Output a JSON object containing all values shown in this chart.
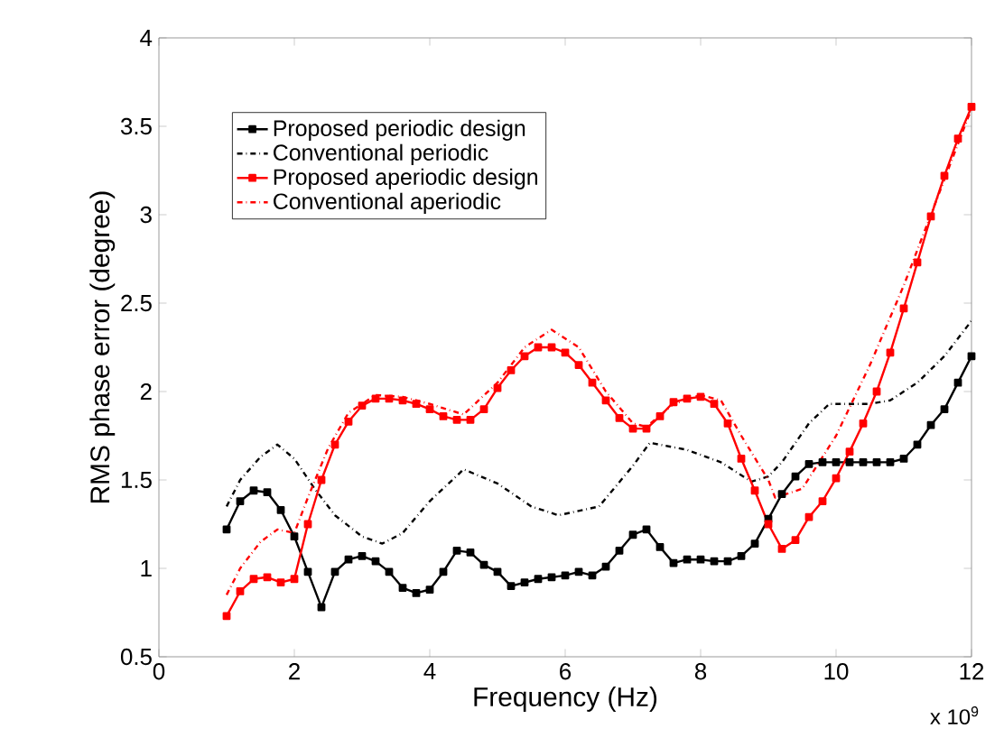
{
  "chart_data": {
    "type": "line",
    "xlabel": "Frequency (Hz)",
    "ylabel": "RMS phase error (degree)",
    "annotations": [
      "x 10$^{9}$"
    ],
    "xlim": [
      0,
      12
    ],
    "xticks": [
      0,
      2,
      4,
      6,
      8,
      10,
      12
    ],
    "ylim": [
      0.5,
      4
    ],
    "yticks": [
      0.5,
      1,
      1.5,
      2,
      2.5,
      3,
      3.5,
      4
    ],
    "grid": false,
    "legend": "top left",
    "series": [
      {
        "name": "Proposed periodic design",
        "color": "#000000",
        "marker": "square",
        "line_style": "solid",
        "x": [
          1.0,
          1.2,
          1.4,
          1.6,
          1.8,
          2.0,
          2.2,
          2.4,
          2.6,
          2.8,
          3.0,
          3.2,
          3.4,
          3.6,
          3.8,
          4.0,
          4.2,
          4.4,
          4.6,
          4.8,
          5.0,
          5.2,
          5.4,
          5.6,
          5.8,
          6.0,
          6.2,
          6.4,
          6.6,
          6.8,
          7.0,
          7.2,
          7.4,
          7.6,
          7.8,
          8.0,
          8.2,
          8.4,
          8.6,
          8.8,
          9.0,
          9.2,
          9.4,
          9.6,
          9.8,
          10.0,
          10.2,
          10.4,
          10.6,
          10.8,
          11.0,
          11.2,
          11.4,
          11.6,
          11.8,
          12.0
        ],
        "values": [
          1.22,
          1.38,
          1.44,
          1.43,
          1.33,
          1.18,
          0.98,
          0.78,
          0.98,
          1.05,
          1.07,
          1.04,
          0.98,
          0.89,
          0.86,
          0.88,
          0.98,
          1.1,
          1.09,
          1.02,
          0.98,
          0.9,
          0.92,
          0.94,
          0.95,
          0.96,
          0.98,
          0.96,
          1.01,
          1.1,
          1.19,
          1.22,
          1.12,
          1.03,
          1.05,
          1.05,
          1.04,
          1.04,
          1.07,
          1.14,
          1.28,
          1.42,
          1.52,
          1.59,
          1.6,
          1.6,
          1.6,
          1.6,
          1.6,
          1.6,
          1.62,
          1.7,
          1.81,
          1.9,
          2.05,
          2.2
        ]
      },
      {
        "name": "Conventional periodic",
        "color": "#000000",
        "marker": "none",
        "line_style": "dashdotted",
        "x": [
          1.0,
          1.2,
          1.5,
          1.75,
          2.0,
          2.3,
          2.6,
          3.0,
          3.3,
          3.6,
          4.0,
          4.5,
          5.0,
          5.5,
          5.9,
          6.5,
          7.0,
          7.25,
          7.8,
          8.3,
          8.75,
          9.0,
          9.2,
          9.6,
          9.9,
          10.5,
          10.8,
          11.2,
          11.6,
          12.0
        ],
        "values": [
          1.35,
          1.5,
          1.63,
          1.7,
          1.62,
          1.45,
          1.3,
          1.18,
          1.14,
          1.2,
          1.38,
          1.56,
          1.48,
          1.35,
          1.3,
          1.35,
          1.58,
          1.71,
          1.67,
          1.6,
          1.49,
          1.52,
          1.6,
          1.82,
          1.93,
          1.93,
          1.95,
          2.05,
          2.2,
          2.4
        ]
      },
      {
        "name": "Proposed aperiodic design",
        "color": "#ff0000",
        "marker": "square",
        "line_style": "solid",
        "x": [
          1.0,
          1.2,
          1.4,
          1.6,
          1.8,
          2.0,
          2.2,
          2.4,
          2.6,
          2.8,
          3.0,
          3.2,
          3.4,
          3.6,
          3.8,
          4.0,
          4.2,
          4.4,
          4.6,
          4.8,
          5.0,
          5.2,
          5.4,
          5.6,
          5.8,
          6.0,
          6.2,
          6.4,
          6.6,
          6.8,
          7.0,
          7.2,
          7.4,
          7.6,
          7.8,
          8.0,
          8.2,
          8.4,
          8.6,
          8.8,
          9.0,
          9.2,
          9.4,
          9.6,
          9.8,
          10.0,
          10.2,
          10.4,
          10.6,
          10.8,
          11.0,
          11.2,
          11.4,
          11.6,
          11.8,
          12.0
        ],
        "values": [
          0.73,
          0.87,
          0.94,
          0.95,
          0.92,
          0.94,
          1.25,
          1.5,
          1.7,
          1.83,
          1.92,
          1.96,
          1.96,
          1.95,
          1.93,
          1.9,
          1.86,
          1.84,
          1.84,
          1.9,
          2.02,
          2.12,
          2.2,
          2.25,
          2.25,
          2.22,
          2.15,
          2.05,
          1.95,
          1.85,
          1.79,
          1.79,
          1.86,
          1.94,
          1.96,
          1.97,
          1.93,
          1.82,
          1.62,
          1.44,
          1.25,
          1.11,
          1.16,
          1.29,
          1.38,
          1.51,
          1.66,
          1.82,
          2.0,
          2.22,
          2.47,
          2.73,
          2.99,
          3.22,
          3.43,
          3.61
        ]
      },
      {
        "name": "Conventional aperiodic",
        "color": "#ff0000",
        "marker": "none",
        "line_style": "dashdotted",
        "x": [
          1.0,
          1.2,
          1.5,
          1.75,
          2.0,
          2.2,
          2.5,
          2.8,
          3.2,
          3.6,
          4.0,
          4.5,
          5.0,
          5.4,
          5.8,
          6.2,
          6.6,
          7.0,
          7.2,
          7.6,
          8.0,
          8.3,
          8.6,
          9.0,
          9.1,
          9.5,
          10.0,
          10.5,
          11.0,
          11.5,
          12.0
        ],
        "values": [
          0.85,
          1.0,
          1.15,
          1.22,
          1.2,
          1.4,
          1.68,
          1.88,
          1.98,
          1.97,
          1.93,
          1.87,
          2.05,
          2.25,
          2.35,
          2.25,
          2.0,
          1.82,
          1.8,
          1.93,
          1.98,
          1.95,
          1.75,
          1.5,
          1.4,
          1.45,
          1.75,
          2.15,
          2.6,
          3.1,
          3.6
        ]
      }
    ]
  }
}
